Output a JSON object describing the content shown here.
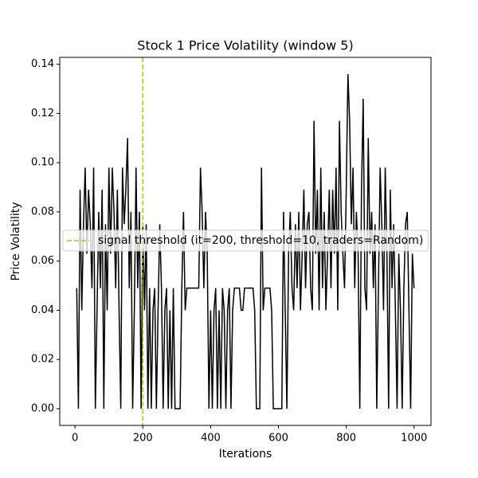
{
  "chart_data": {
    "type": "line",
    "title": "Stock 1 Price Volatility (window 5)",
    "x_label": "Iterations",
    "y_label": "Price Volatility",
    "x": [
      5,
      10,
      15,
      20,
      25,
      30,
      35,
      40,
      45,
      50,
      55,
      60,
      65,
      70,
      75,
      80,
      85,
      90,
      95,
      100,
      105,
      110,
      115,
      120,
      125,
      130,
      135,
      140,
      145,
      150,
      155,
      160,
      165,
      170,
      175,
      180,
      185,
      190,
      195,
      200,
      205,
      210,
      215,
      220,
      225,
      230,
      235,
      240,
      245,
      250,
      255,
      260,
      265,
      270,
      275,
      280,
      285,
      290,
      295,
      300,
      305,
      310,
      315,
      320,
      325,
      330,
      335,
      340,
      345,
      350,
      355,
      360,
      365,
      370,
      375,
      380,
      385,
      390,
      395,
      400,
      405,
      410,
      415,
      420,
      425,
      430,
      435,
      440,
      445,
      450,
      455,
      460,
      465,
      470,
      475,
      480,
      485,
      490,
      495,
      500,
      505,
      510,
      515,
      520,
      525,
      530,
      535,
      540,
      545,
      550,
      555,
      560,
      565,
      570,
      575,
      580,
      585,
      590,
      595,
      600,
      605,
      610,
      615,
      620,
      625,
      630,
      635,
      640,
      645,
      650,
      655,
      660,
      665,
      670,
      675,
      680,
      685,
      690,
      695,
      700,
      705,
      710,
      715,
      720,
      725,
      730,
      735,
      740,
      745,
      750,
      755,
      760,
      765,
      770,
      775,
      780,
      785,
      790,
      795,
      800,
      805,
      810,
      815,
      820,
      825,
      830,
      835,
      840,
      845,
      850,
      855,
      860,
      865,
      870,
      875,
      880,
      885,
      890,
      895,
      900,
      905,
      910,
      915,
      920,
      925,
      930,
      935,
      940,
      945,
      950,
      955,
      960,
      965,
      970,
      975,
      980,
      985,
      990,
      995,
      1000
    ],
    "series": [
      {
        "color": "#000000",
        "values": [
          0.049,
          0,
          0.089,
          0.04,
          0.075,
          0.098,
          0.063,
          0.089,
          0.075,
          0.049,
          0.098,
          0,
          0.04,
          0.08,
          0.049,
          0.089,
          0,
          0.075,
          0.04,
          0.098,
          0.063,
          0.098,
          0.08,
          0.049,
          0.089,
          0.04,
          0,
          0.098,
          0.075,
          0.089,
          0.11,
          0.049,
          0.08,
          0,
          0.04,
          0.098,
          0.049,
          0.08,
          0,
          0.075,
          0.04,
          0.075,
          0,
          0.049,
          0,
          0.04,
          0.049,
          0,
          0.04,
          0.075,
          0.049,
          0,
          0.04,
          0.049,
          0,
          0.04,
          0,
          0.049,
          0,
          0,
          0,
          0,
          0.049,
          0.08,
          0.04,
          0.049,
          0.049,
          0.049,
          0.049,
          0.049,
          0.049,
          0.049,
          0.049,
          0.098,
          0.08,
          0.049,
          0.08,
          0.063,
          0,
          0.04,
          0,
          0.04,
          0.049,
          0,
          0.04,
          0,
          0.049,
          0.04,
          0,
          0.04,
          0.049,
          0,
          0.04,
          0.049,
          0.049,
          0.049,
          0.049,
          0.04,
          0.04,
          0.049,
          0.049,
          0.049,
          0.049,
          0.049,
          0.049,
          0.04,
          0,
          0,
          0,
          0.098,
          0.04,
          0.049,
          0.049,
          0.049,
          0.049,
          0.04,
          0,
          0,
          0,
          0,
          0,
          0,
          0.08,
          0.04,
          0,
          0.063,
          0.08,
          0.049,
          0.04,
          0.075,
          0.049,
          0.08,
          0.04,
          0.063,
          0.089,
          0.049,
          0.075,
          0.08,
          0.049,
          0.04,
          0.117,
          0.063,
          0.089,
          0.04,
          0.098,
          0.049,
          0.08,
          0.04,
          0.063,
          0.089,
          0.049,
          0.089,
          0.063,
          0.098,
          0.04,
          0.117,
          0.08,
          0.063,
          0.049,
          0.089,
          0.136,
          0.117,
          0.075,
          0.098,
          0.049,
          0.08,
          0.063,
          0,
          0.089,
          0.126,
          0.049,
          0.04,
          0.11,
          0.063,
          0.08,
          0.049,
          0.075,
          0,
          0.049,
          0.098,
          0.075,
          0.04,
          0.098,
          0.063,
          0,
          0.089,
          0.049,
          0.075,
          0.04,
          0,
          0.063,
          0.04,
          0,
          0.049,
          0.075,
          0.08,
          0.04,
          0,
          0.063,
          0.049
        ]
      }
    ],
    "vline": {
      "x": 200,
      "name": "signal threshold (it=200, threshold=10, traders=Random)",
      "color": "#bcbd22"
    },
    "xlim": [
      -45,
      1050
    ],
    "ylim": [
      -0.0068,
      0.1428
    ],
    "xticks": [
      0,
      200,
      400,
      600,
      800,
      1000
    ],
    "yticks": [
      {
        "value": 0,
        "label": "0.00"
      },
      {
        "value": 0.02,
        "label": "0.02"
      },
      {
        "value": 0.04,
        "label": "0.04"
      },
      {
        "value": 0.06,
        "label": "0.06"
      },
      {
        "value": 0.08,
        "label": "0.08"
      },
      {
        "value": 0.1,
        "label": "0.10"
      },
      {
        "value": 0.12,
        "label": "0.12"
      },
      {
        "value": 0.14,
        "label": "0.14"
      }
    ],
    "grid": false,
    "legend": "center left"
  }
}
